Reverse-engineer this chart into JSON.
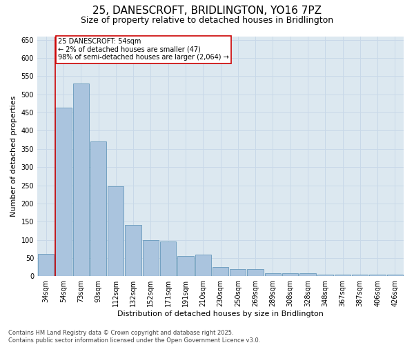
{
  "title_line1": "25, DANESCROFT, BRIDLINGTON, YO16 7PZ",
  "title_line2": "Size of property relative to detached houses in Bridlington",
  "xlabel": "Distribution of detached houses by size in Bridlington",
  "ylabel": "Number of detached properties",
  "categories": [
    "34sqm",
    "54sqm",
    "73sqm",
    "93sqm",
    "112sqm",
    "132sqm",
    "152sqm",
    "171sqm",
    "191sqm",
    "210sqm",
    "230sqm",
    "250sqm",
    "269sqm",
    "289sqm",
    "308sqm",
    "328sqm",
    "348sqm",
    "367sqm",
    "387sqm",
    "406sqm",
    "426sqm"
  ],
  "values": [
    62,
    463,
    530,
    370,
    248,
    140,
    100,
    95,
    55,
    60,
    25,
    20,
    20,
    8,
    8,
    8,
    5,
    5,
    5,
    4,
    4
  ],
  "bar_color": "#aac4de",
  "bar_edge_color": "#6699bb",
  "annotation_box_text": "25 DANESCROFT: 54sqm\n← 2% of detached houses are smaller (47)\n98% of semi-detached houses are larger (2,064) →",
  "annotation_box_color": "#ffffff",
  "annotation_box_edge_color": "#cc0000",
  "red_line_index": 1,
  "red_line_color": "#cc0000",
  "ylim": [
    0,
    660
  ],
  "yticks": [
    0,
    50,
    100,
    150,
    200,
    250,
    300,
    350,
    400,
    450,
    500,
    550,
    600,
    650
  ],
  "grid_color": "#c8d8e8",
  "background_color": "#dce8f0",
  "footer_line1": "Contains HM Land Registry data © Crown copyright and database right 2025.",
  "footer_line2": "Contains public sector information licensed under the Open Government Licence v3.0.",
  "title_fontsize": 11,
  "subtitle_fontsize": 9,
  "tick_fontsize": 7,
  "label_fontsize": 8,
  "footer_fontsize": 6
}
